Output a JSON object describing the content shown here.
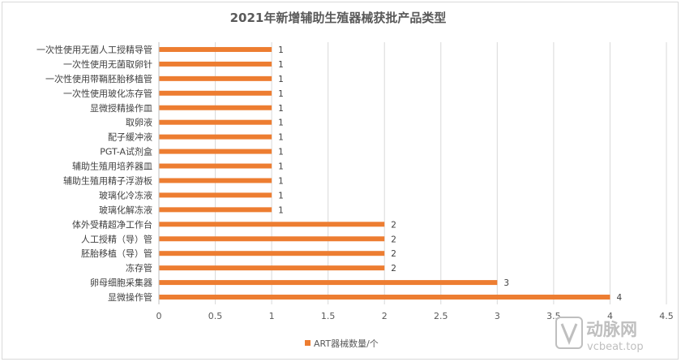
{
  "chart_data": {
    "type": "bar",
    "orientation": "horizontal",
    "title": "2021年新增辅助生殖器械获批产品类型",
    "categories": [
      "一次性使用无菌人工授精导管",
      "一次性使用无菌取卵针",
      "一次性使用带鞘胚胎移植管",
      "一次性使用玻化冻存管",
      "显微授精操作皿",
      "取卵液",
      "配子缓冲液",
      "PGT-A试剂盒",
      "辅助生殖用培养器皿",
      "辅助生殖用精子浮游板",
      "玻璃化冷冻液",
      "玻璃化解冻液",
      "体外受精超净工作台",
      "人工授精（导）管",
      "胚胎移植（导）管",
      "冻存管",
      "卵母细胞采集器",
      "显微操作管"
    ],
    "series": [
      {
        "name": "ART器械数量/个",
        "color": "#ed7d31",
        "values": [
          1,
          1,
          1,
          1,
          1,
          1,
          1,
          1,
          1,
          1,
          1,
          1,
          2,
          2,
          2,
          2,
          3,
          4
        ]
      }
    ],
    "xlim": [
      0,
      4.5
    ],
    "xticks": [
      "0",
      "0.5",
      "1",
      "1.5",
      "2",
      "2.5",
      "3",
      "3.5",
      "4",
      "4.5"
    ],
    "grid": true,
    "legend": "bottom"
  },
  "watermark": {
    "brand": "动脉网",
    "url": "vcbeat.top"
  }
}
